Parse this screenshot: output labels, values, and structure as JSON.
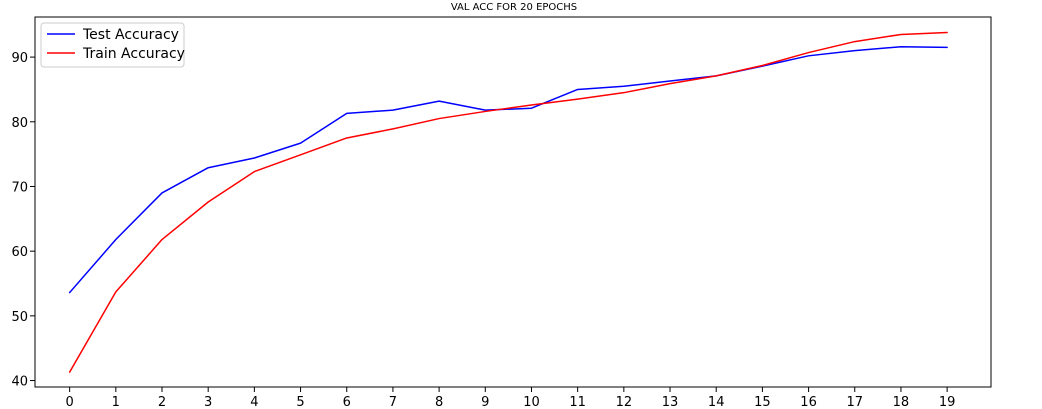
{
  "chart_data": {
    "type": "line",
    "title": "VAL ACC FOR 20 EPOCHS",
    "xlabel": "",
    "ylabel": "",
    "x": [
      0,
      1,
      2,
      3,
      4,
      5,
      6,
      7,
      8,
      9,
      10,
      11,
      12,
      13,
      14,
      15,
      16,
      17,
      18,
      19
    ],
    "xlim": [
      -0.75,
      19.95
    ],
    "ylim": [
      39,
      96.2
    ],
    "x_ticks": [
      "0",
      "1",
      "2",
      "3",
      "4",
      "5",
      "6",
      "7",
      "8",
      "9",
      "10",
      "11",
      "12",
      "13",
      "14",
      "15",
      "16",
      "17",
      "18",
      "19"
    ],
    "y_ticks": [
      40,
      50,
      60,
      70,
      80,
      90
    ],
    "grid": false,
    "legend_position": "top-left",
    "series": [
      {
        "name": "Test Accuracy",
        "color": "#0000ff",
        "values": [
          53.6,
          61.8,
          69.0,
          72.9,
          74.4,
          76.7,
          81.3,
          81.8,
          83.2,
          81.8,
          82.1,
          85.0,
          85.5,
          86.3,
          87.1,
          88.6,
          90.2,
          91.0,
          91.6,
          91.5
        ]
      },
      {
        "name": "Train Accuracy",
        "color": "#ff0000",
        "values": [
          41.3,
          53.7,
          61.8,
          67.6,
          72.3,
          74.9,
          77.5,
          78.9,
          80.5,
          81.6,
          82.6,
          83.5,
          84.5,
          85.9,
          87.1,
          88.7,
          90.7,
          92.4,
          93.5,
          93.8
        ]
      }
    ]
  }
}
